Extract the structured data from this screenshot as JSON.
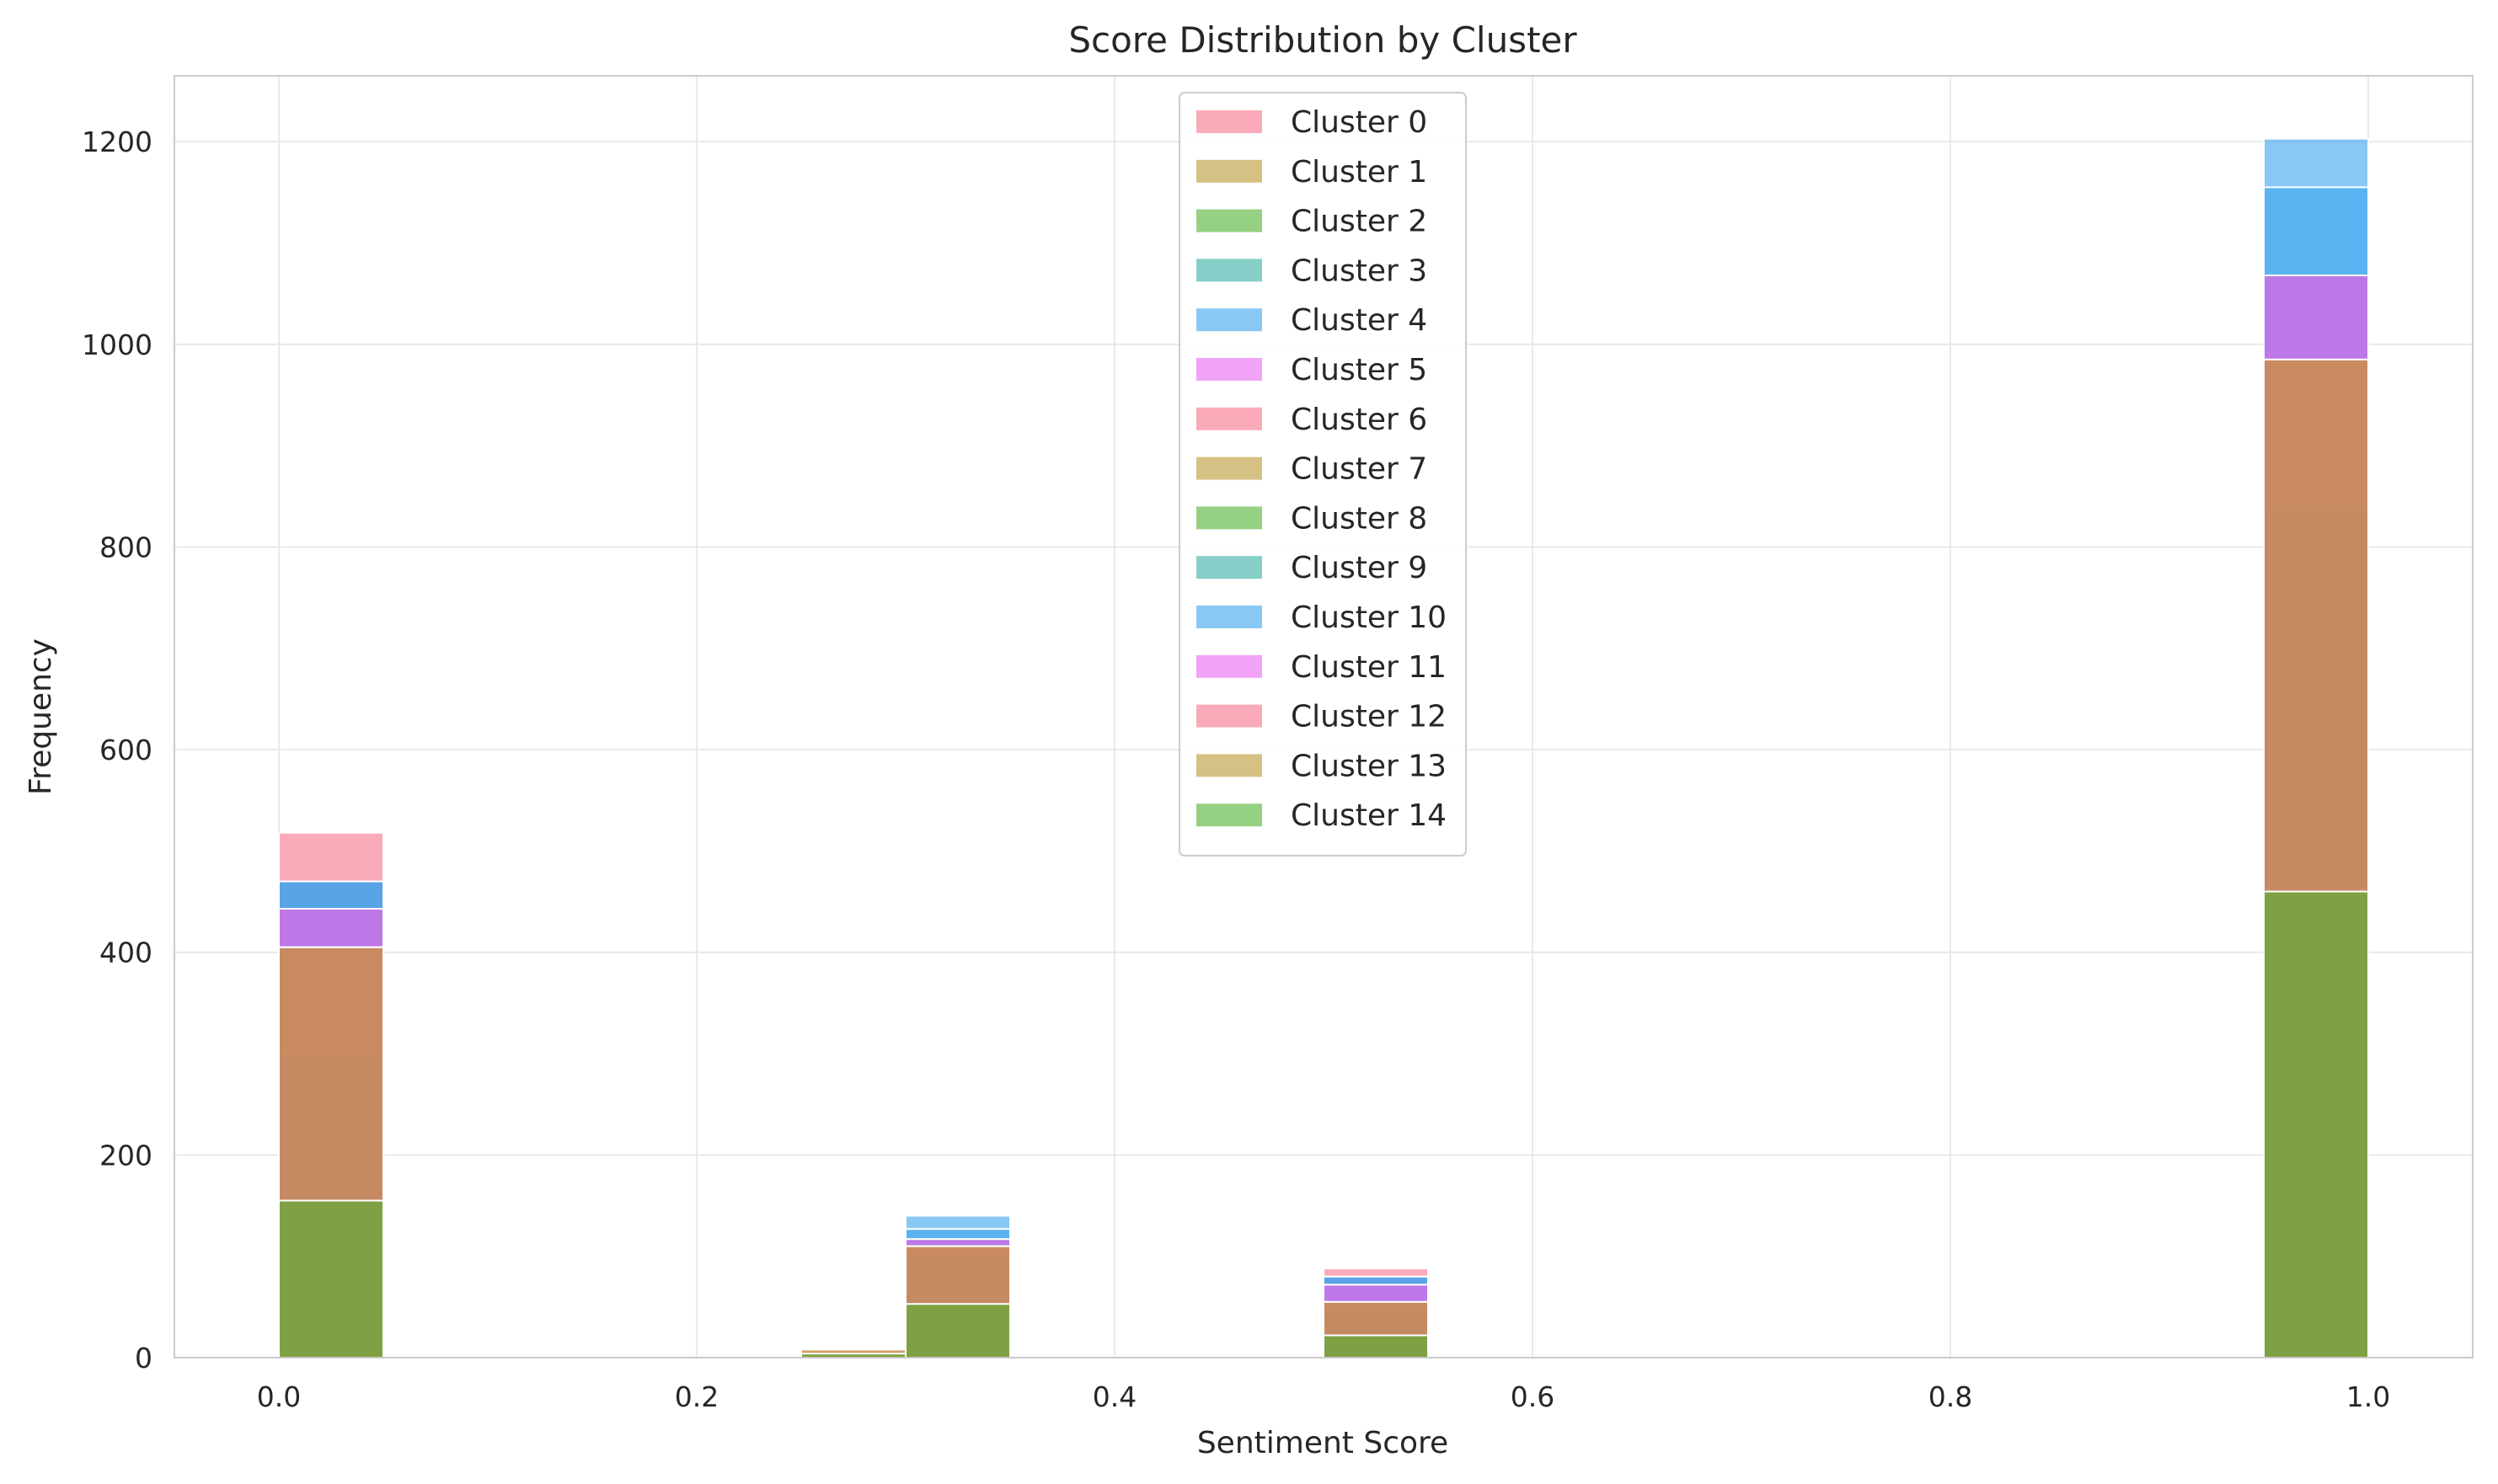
{
  "chart_data": {
    "type": "bar",
    "title": "Score Distribution by Cluster",
    "xlabel": "Sentiment Score",
    "ylabel": "Frequency",
    "xlim": [
      -0.05,
      1.05
    ],
    "ylim": [
      0,
      1265
    ],
    "bin_width": 0.05,
    "xticks": [
      "0.0",
      "0.2",
      "0.4",
      "0.6",
      "0.8",
      "1.0"
    ],
    "xtick_values": [
      0.0,
      0.2,
      0.4,
      0.6,
      0.8,
      1.0
    ],
    "yticks": [
      "0",
      "200",
      "400",
      "600",
      "800",
      "1000",
      "1200"
    ],
    "ytick_values": [
      0,
      200,
      400,
      600,
      800,
      1000,
      1200
    ],
    "grid": true,
    "legend_position": "top-center",
    "bins": [
      0.0,
      0.25,
      0.3,
      0.5,
      0.95
    ],
    "series": [
      {
        "name": "Cluster 0",
        "color": "#f77189",
        "values": [
          518,
          10,
          110,
          88,
          985
        ]
      },
      {
        "name": "Cluster 1",
        "color": "#bb9832",
        "values": [
          405,
          8,
          110,
          55,
          985
        ]
      },
      {
        "name": "Cluster 2",
        "color": "#50b131",
        "values": [
          205,
          6,
          53,
          22,
          460
        ]
      },
      {
        "name": "Cluster 3",
        "color": "#36ada4",
        "values": [
          310,
          0,
          110,
          55,
          985
        ]
      },
      {
        "name": "Cluster 4",
        "color": "#3ba3ec",
        "values": [
          470,
          9,
          140,
          80,
          1203
        ]
      },
      {
        "name": "Cluster 5",
        "color": "#e866f4",
        "values": [
          443,
          0,
          117,
          72,
          1068
        ]
      },
      {
        "name": "Cluster 6",
        "color": "#f77189",
        "values": [
          443,
          0,
          117,
          72,
          1068
        ]
      },
      {
        "name": "Cluster 7",
        "color": "#bb9832",
        "values": [
          405,
          8,
          110,
          55,
          985
        ]
      },
      {
        "name": "Cluster 8",
        "color": "#50b131",
        "values": [
          205,
          6,
          53,
          22,
          460
        ]
      },
      {
        "name": "Cluster 9",
        "color": "#36ada4",
        "values": [
          300,
          0,
          100,
          50,
          840
        ]
      },
      {
        "name": "Cluster 10",
        "color": "#3ba3ec",
        "values": [
          470,
          0,
          127,
          80,
          1155
        ]
      },
      {
        "name": "Cluster 11",
        "color": "#e866f4",
        "values": [
          443,
          0,
          117,
          72,
          1068
        ]
      },
      {
        "name": "Cluster 12",
        "color": "#f77189",
        "values": [
          405,
          8,
          110,
          55,
          985
        ]
      },
      {
        "name": "Cluster 13",
        "color": "#bb9832",
        "values": [
          405,
          8,
          110,
          55,
          985
        ]
      },
      {
        "name": "Cluster 14",
        "color": "#50b131",
        "values": [
          155,
          4,
          53,
          22,
          460
        ]
      }
    ]
  }
}
